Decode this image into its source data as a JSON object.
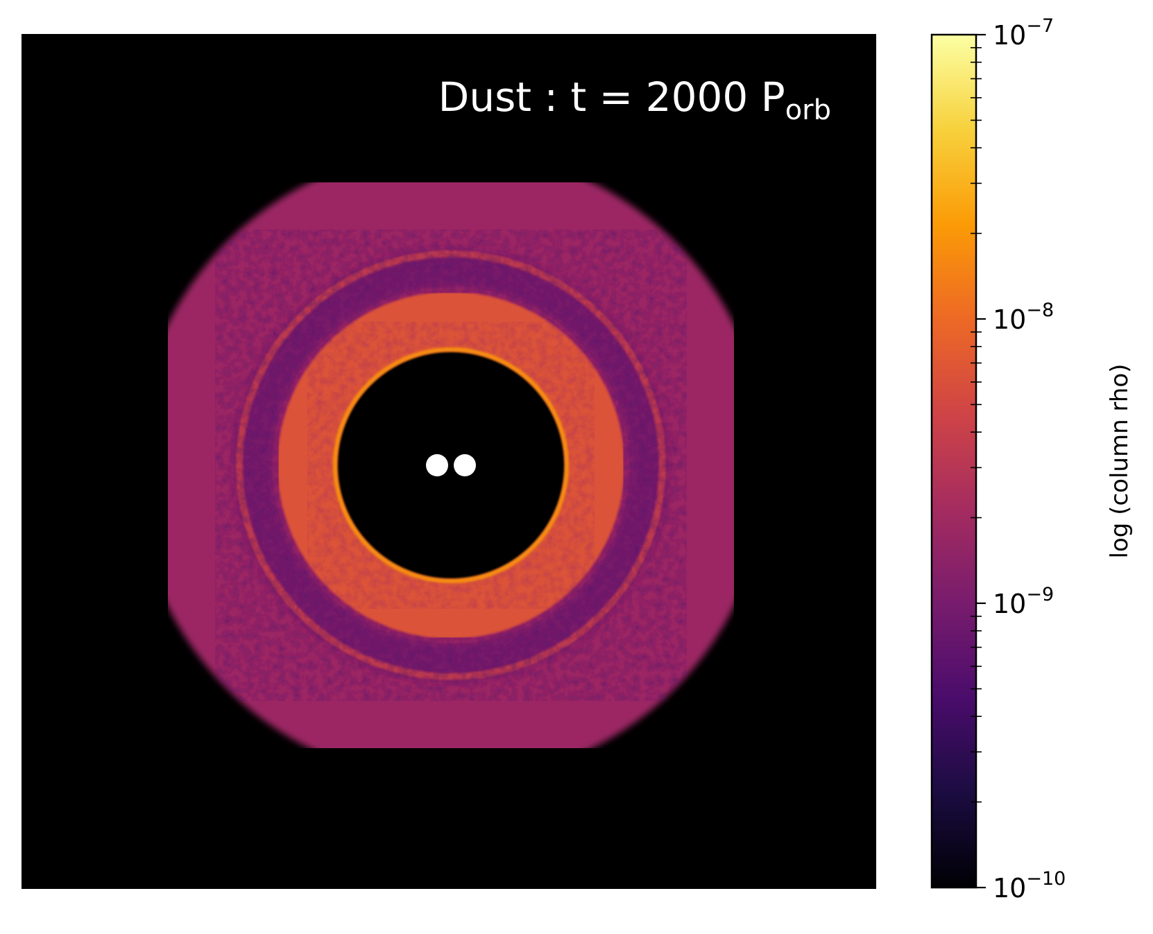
{
  "chart_data": {
    "type": "heatmap",
    "title": {
      "text": "Dust : t = 2000 P",
      "subscript": "orb"
    },
    "colorbar": {
      "label": "log (column rho)",
      "scale": "log",
      "colormap": "inferno",
      "range": [
        1e-10,
        1e-07
      ],
      "major_ticks": [
        {
          "value": 1e-10,
          "base": "10",
          "exponent": "−10"
        },
        {
          "value": 1e-09,
          "base": "10",
          "exponent": "−9"
        },
        {
          "value": 1e-08,
          "base": "10",
          "exponent": "−8"
        },
        {
          "value": 1e-07,
          "base": "10",
          "exponent": "−7"
        }
      ],
      "colors": [
        "#000004",
        "#1b0c41",
        "#4a0c6b",
        "#781c6d",
        "#a52c60",
        "#cf4446",
        "#ed6925",
        "#fb9b06",
        "#f7d13d",
        "#fcffa4"
      ]
    },
    "map": {
      "background": "#000000",
      "gap_ring_level": 0.6,
      "outer_ring_level": 0.55,
      "outer_disc_level": 0.42,
      "binary_color": "#ffffff",
      "binary_count": 2
    },
    "axes_visible": false
  }
}
